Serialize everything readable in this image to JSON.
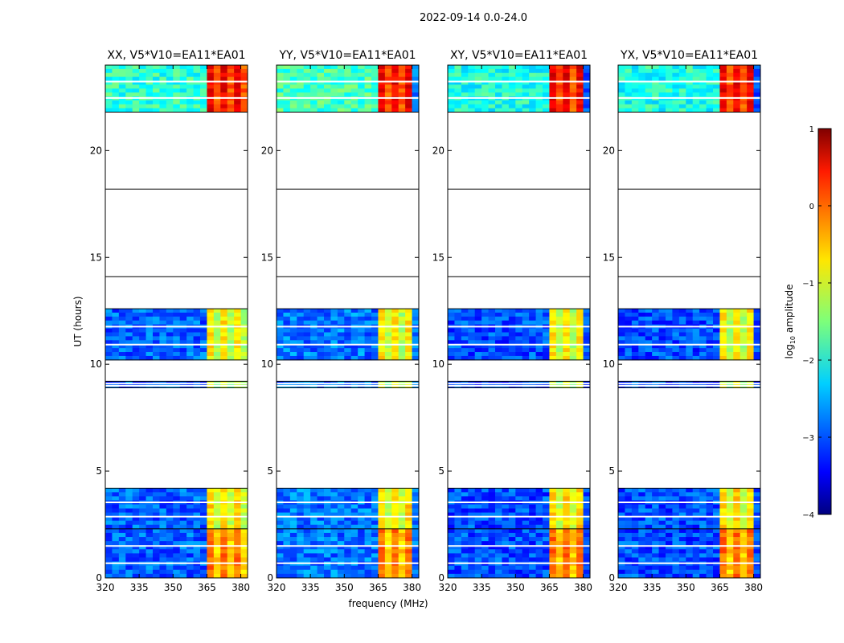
{
  "figure_title": "2022-09-14 0.0-24.0",
  "ylabel": "UT (hours)",
  "xlabel": "frequency (MHz)",
  "colorbar": {
    "label": "log",
    "label_sub": "10",
    "label_rest": " amplitude",
    "ticks": [
      "1",
      "0",
      "−1",
      "−2",
      "−3",
      "−4"
    ],
    "tick_values": [
      1,
      0,
      -1,
      -2,
      -3,
      -4
    ],
    "range": [
      -4,
      1
    ]
  },
  "chart_data": {
    "type": "heatmap",
    "x_range": [
      320,
      383
    ],
    "y_range": [
      0,
      24
    ],
    "x_ticks": [
      320,
      335,
      350,
      365,
      380
    ],
    "x_tick_labels": [
      "320",
      "335",
      "350",
      "365",
      "380"
    ],
    "y_ticks": [
      0,
      5,
      10,
      15,
      20
    ],
    "y_tick_labels": [
      "0",
      "5",
      "10",
      "15",
      "20"
    ],
    "data_time_blocks": [
      {
        "start": 0.0,
        "end": 2.3,
        "band_level": -0.3
      },
      {
        "start": 2.3,
        "end": 4.2,
        "band_level": -0.8
      },
      {
        "start": 8.9,
        "end": 9.2,
        "band_level": -1.2
      },
      {
        "start": 10.2,
        "end": 12.6,
        "band_level": -0.9
      },
      {
        "start": 21.8,
        "end": 24.0,
        "band_level": 0.3
      }
    ],
    "horizontal_lines_hours": [
      14.1,
      18.2
    ],
    "bright_band_mhz": [
      363,
      382
    ],
    "panels": [
      {
        "title": "XX, V5*V10=EA11*EA01",
        "band_end_mhz": 381,
        "base_level": -2.9
      },
      {
        "title": "YY, V5*V10=EA11*EA01",
        "band_end_mhz": 379,
        "base_level": -2.8
      },
      {
        "title": "XY, V5*V10=EA11*EA01",
        "band_end_mhz": 378,
        "base_level": -3.0
      },
      {
        "title": "YX, V5*V10=EA11*EA01",
        "band_end_mhz": 378,
        "base_level": -3.0
      }
    ]
  }
}
